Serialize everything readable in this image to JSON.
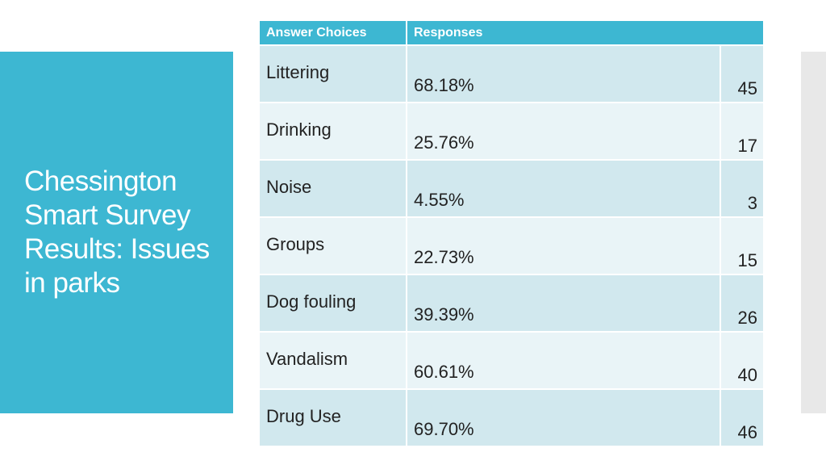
{
  "slide": {
    "title": "Chessington Smart Survey Results: Issues in parks"
  },
  "table": {
    "headers": [
      "Answer Choices",
      "Responses"
    ],
    "rows": [
      {
        "choice": "Littering",
        "percent": "68.18%",
        "count": "45"
      },
      {
        "choice": "Drinking",
        "percent": "25.76%",
        "count": "17"
      },
      {
        "choice": "Noise",
        "percent": "4.55%",
        "count": "3"
      },
      {
        "choice": "Groups",
        "percent": "22.73%",
        "count": "15"
      },
      {
        "choice": "Dog fouling",
        "percent": "39.39%",
        "count": "26"
      },
      {
        "choice": "Vandalism",
        "percent": "60.61%",
        "count": "40"
      },
      {
        "choice": "Drug Use",
        "percent": "69.70%",
        "count": "46"
      }
    ]
  },
  "colors": {
    "accent": "#3db7d2",
    "row_dark": "#d1e8ee",
    "row_light": "#e9f4f7"
  }
}
